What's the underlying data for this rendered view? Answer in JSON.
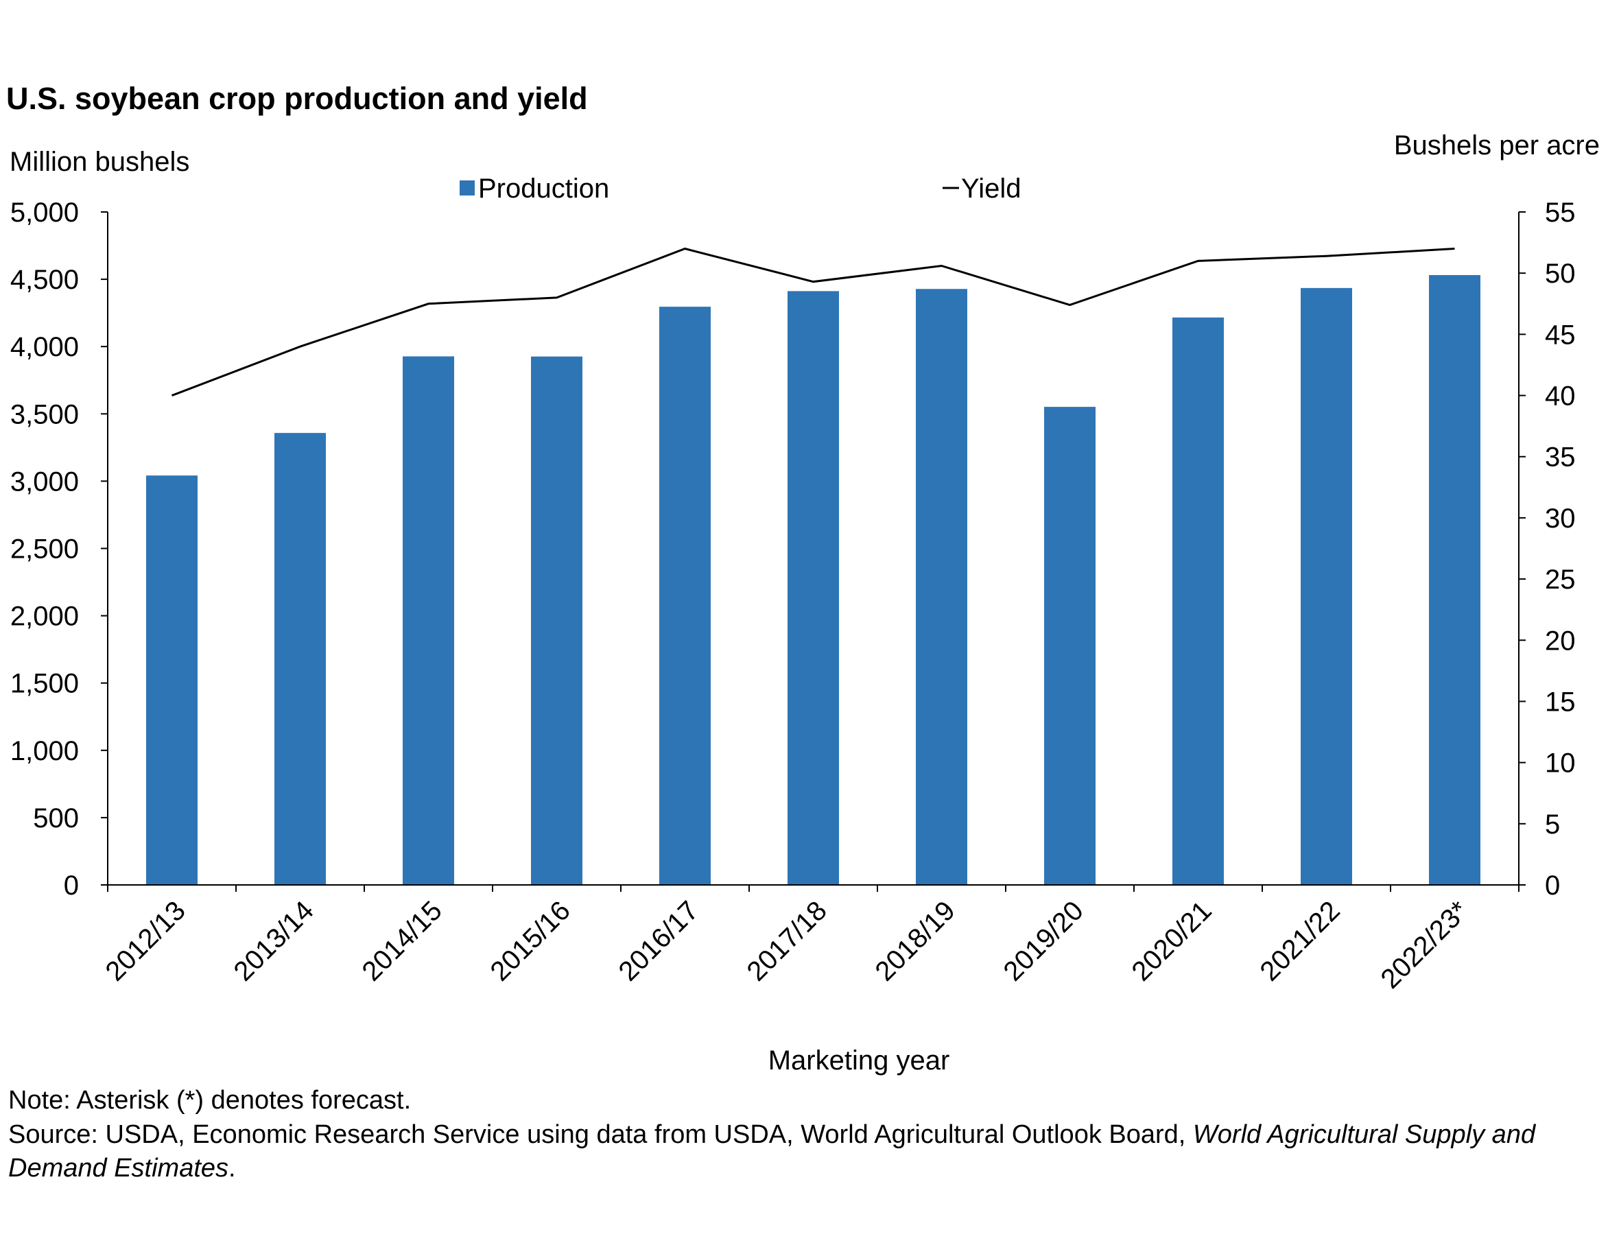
{
  "chart_data": {
    "type": "bar",
    "title": "U.S. soybean crop production and yield",
    "xlabel": "Marketing year",
    "ylabel": "Million bushels",
    "y2label": "Bushels per acre",
    "categories": [
      "2012/13",
      "2013/14",
      "2014/15",
      "2015/16",
      "2016/17",
      "2017/18",
      "2018/19",
      "2019/20",
      "2020/21",
      "2021/22",
      "2022/23*"
    ],
    "series": [
      {
        "name": "Production",
        "type": "bar",
        "axis": "left",
        "color": "#2E75B6",
        "values": [
          3042,
          3358,
          3927,
          3926,
          4296,
          4412,
          4428,
          3552,
          4216,
          4435,
          4531
        ]
      },
      {
        "name": "Yield",
        "type": "line",
        "axis": "right",
        "color": "#000000",
        "values": [
          40.0,
          44.0,
          47.5,
          48.0,
          52.0,
          49.3,
          50.6,
          47.4,
          51.0,
          51.4,
          52.0
        ]
      }
    ],
    "ylim": [
      0,
      5000
    ],
    "y2lim": [
      0,
      55
    ],
    "yticks": [
      "0",
      "500",
      "1,000",
      "1,500",
      "2,000",
      "2,500",
      "3,000",
      "3,500",
      "4,000",
      "4,500",
      "5,000"
    ],
    "y2ticks": [
      "0",
      "5",
      "10",
      "15",
      "20",
      "25",
      "30",
      "35",
      "40",
      "45",
      "50",
      "55"
    ],
    "grid": false,
    "legend": "top-center"
  },
  "notes": {
    "note": "Note: Asterisk (*) denotes forecast.",
    "source_prefix": "Source: USDA, Economic Research Service using data from USDA, World Agricultural Outlook Board,",
    "source_italic": "World Agricultural Supply and Demand Estimates",
    "source_suffix": "."
  }
}
